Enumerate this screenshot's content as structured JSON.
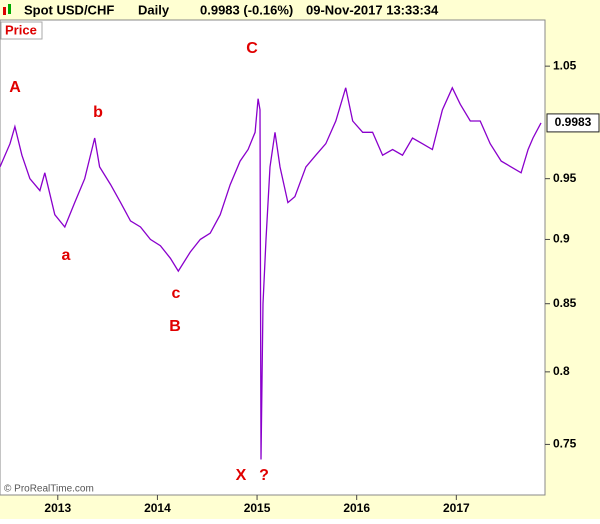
{
  "header": {
    "instrument": "Spot USD/CHF",
    "period": "Daily",
    "quote": "0.9983 (-0.16%)",
    "timestamp": "09-Nov-2017 13:33:34"
  },
  "panel_label": "Price",
  "copyright": "© ProRealTime.com",
  "chart_data": {
    "type": "line",
    "log_scale": true,
    "grid": false,
    "x": [
      2012.42,
      2012.52,
      2012.57,
      2012.64,
      2012.72,
      2012.82,
      2012.87,
      2012.97,
      2013.07,
      2013.17,
      2013.27,
      2013.37,
      2013.42,
      2013.53,
      2013.63,
      2013.73,
      2013.83,
      2013.93,
      2014.03,
      2014.13,
      2014.21,
      2014.33,
      2014.43,
      2014.53,
      2014.63,
      2014.73,
      2014.83,
      2014.91,
      2014.98,
      2015.01,
      2015.03,
      2015.04,
      2015.06,
      2015.09,
      2015.13,
      2015.18,
      2015.23,
      2015.31,
      2015.38,
      2015.49,
      2015.59,
      2015.69,
      2015.79,
      2015.89,
      2015.96,
      2016.06,
      2016.16,
      2016.26,
      2016.36,
      2016.46,
      2016.56,
      2016.66,
      2016.76,
      2016.86,
      2016.96,
      2017.04,
      2017.14,
      2017.24,
      2017.34,
      2017.45,
      2017.55,
      2017.65,
      2017.72,
      2017.77,
      2017.85
    ],
    "series": [
      {
        "name": "Spot USD/CHF",
        "color": "#8a00cc",
        "values": [
          0.96,
          0.98,
          0.995,
          0.97,
          0.95,
          0.94,
          0.955,
          0.92,
          0.91,
          0.93,
          0.95,
          0.985,
          0.96,
          0.945,
          0.93,
          0.915,
          0.91,
          0.9,
          0.895,
          0.885,
          0.875,
          0.89,
          0.9,
          0.905,
          0.92,
          0.945,
          0.965,
          0.975,
          0.99,
          1.02,
          1.01,
          0.74,
          0.85,
          0.9,
          0.96,
          0.99,
          0.96,
          0.93,
          0.935,
          0.96,
          0.97,
          0.98,
          1.0,
          1.03,
          1.0,
          0.99,
          0.99,
          0.97,
          0.975,
          0.97,
          0.985,
          0.98,
          0.975,
          1.01,
          1.03,
          1.015,
          1.0,
          1.0,
          0.98,
          0.965,
          0.96,
          0.955,
          0.975,
          0.985,
          0.9983
        ]
      }
    ],
    "xlim": [
      2012.42,
      2017.89
    ],
    "xticks": [
      2013,
      2014,
      2015,
      2016,
      2017
    ],
    "ylim": [
      0.717,
      1.094
    ],
    "yticks": [
      0.75,
      0.8,
      0.85,
      0.9,
      0.95,
      1.05
    ],
    "annotations": [
      "A",
      "b",
      "a",
      "c",
      "B",
      "C",
      "X",
      "?"
    ]
  }
}
